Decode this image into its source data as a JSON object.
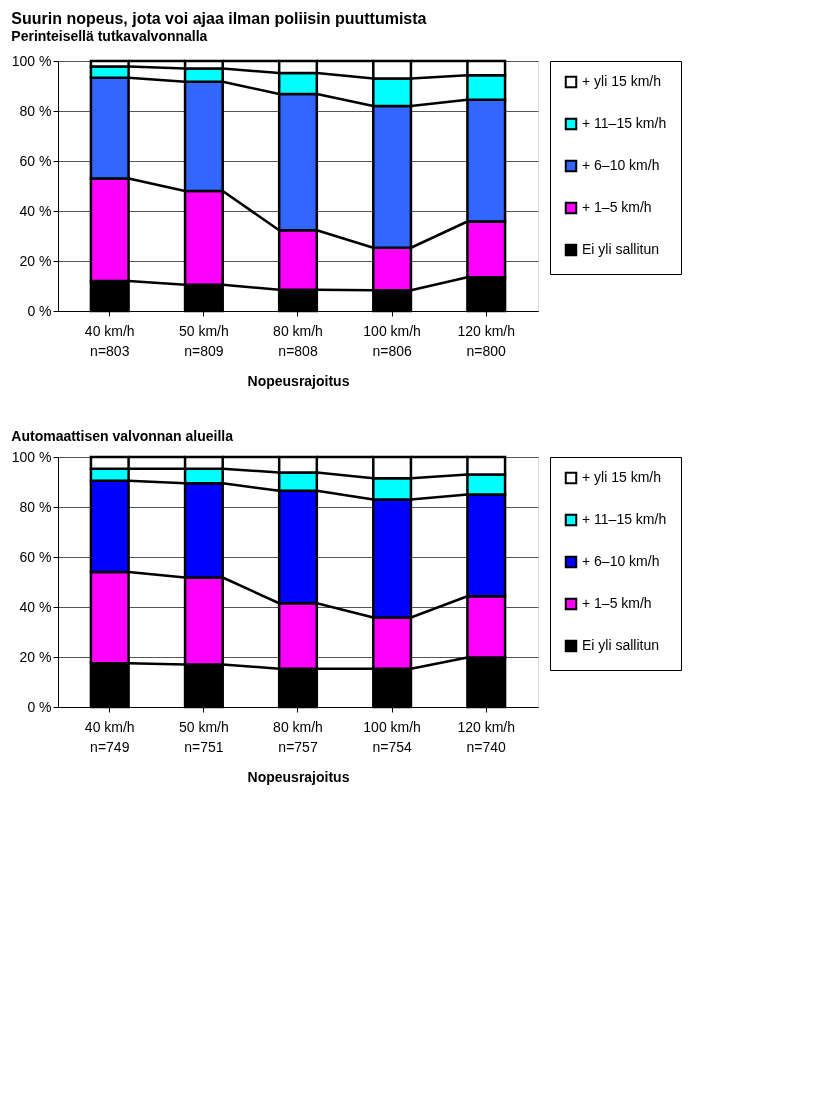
{
  "chart_data": [
    {
      "type": "bar",
      "title": "Suurin nopeus, jota voi ajaa ilman poliisin puuttumista",
      "subtitle": "Perinteisellä tutkavalvonnalla",
      "xlabel": "Nopeusrajoitus",
      "stacked": true,
      "legend": "right",
      "grid": "y",
      "categories": [
        "40 km/h\nn=803",
        "50 km/h\nn=809",
        "80 km/h\nn=808",
        "100 km/h\nn=806",
        "120 km/h\nn=800"
      ],
      "ylim": [
        0,
        100
      ],
      "yticks": [
        {
          "value": 0,
          "label": "0 %"
        },
        {
          "value": 20,
          "label": "20 %"
        },
        {
          "value": 40,
          "label": "40 %"
        },
        {
          "value": 60,
          "label": "60 %"
        },
        {
          "value": 80,
          "label": "80 %"
        },
        {
          "value": 100,
          "label": "100 %"
        }
      ],
      "series": [
        {
          "name": "Ei yli sallitun",
          "color": "#000000",
          "values": [
            12,
            10.5,
            8.5,
            8.3,
            13.5
          ]
        },
        {
          "name": "+ 1–5 km/h",
          "color": "#ff00ff",
          "values": [
            41,
            37.5,
            23.8,
            17,
            22.3
          ]
        },
        {
          "name": "+ 6–10 km/h",
          "color": "#3366ff",
          "values": [
            40.3,
            43.7,
            54.5,
            56.7,
            48.7
          ]
        },
        {
          "name": "+ 11–15 km/h",
          "color": "#00ffff",
          "values": [
            4.5,
            5.3,
            8.4,
            11,
            9.8
          ]
        },
        {
          "name": "+ yli 15 km/h",
          "color": "#ffffff",
          "values": [
            2.2,
            3,
            4.8,
            7,
            5.7
          ]
        }
      ]
    },
    {
      "type": "bar",
      "title": "Automaattisen valvonnan alueilla",
      "xlabel": "Nopeusrajoitus",
      "stacked": true,
      "legend": "right",
      "grid": "y",
      "categories": [
        "40 km/h\nn=749",
        "50 km/h\nn=751",
        "80 km/h\nn=757",
        "100 km/h\nn=754",
        "120 km/h\nn=740"
      ],
      "ylim": [
        0,
        100
      ],
      "yticks": [
        {
          "value": 0,
          "label": "0 %"
        },
        {
          "value": 20,
          "label": "20 %"
        },
        {
          "value": 40,
          "label": "40 %"
        },
        {
          "value": 60,
          "label": "60 %"
        },
        {
          "value": 80,
          "label": "80 %"
        },
        {
          "value": 100,
          "label": "100 %"
        }
      ],
      "series": [
        {
          "name": "Ei yli sallitun",
          "color": "#000000",
          "values": [
            17.5,
            17,
            15.3,
            15.3,
            19.8
          ]
        },
        {
          "name": "+ 1–5 km/h",
          "color": "#ff00ff",
          "values": [
            36.5,
            34.8,
            26.2,
            20.5,
            24.5
          ]
        },
        {
          "name": "+ 6–10 km/h",
          "color": "#0000ff",
          "values": [
            36.5,
            37.7,
            45,
            47.2,
            40.7
          ]
        },
        {
          "name": "+ 11–15 km/h",
          "color": "#00ffff",
          "values": [
            4.8,
            5.8,
            7.3,
            8.5,
            8
          ]
        },
        {
          "name": "+ yli 15 km/h",
          "color": "#ffffff",
          "values": [
            4.7,
            4.7,
            6.2,
            8.5,
            7
          ]
        }
      ]
    }
  ]
}
